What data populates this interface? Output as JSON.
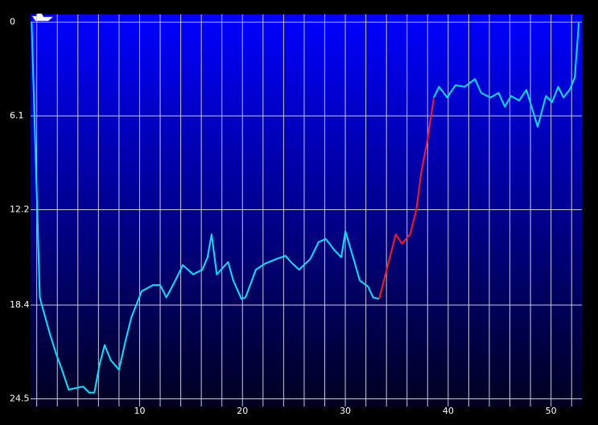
{
  "chart_data": {
    "type": "line",
    "x": [
      -0.5,
      0.3,
      0.45,
      1.2,
      1.9,
      2.4,
      3.1,
      3.8,
      4.5,
      5.1,
      5.6,
      6.1,
      6.6,
      7.2,
      8.0,
      8.6,
      9.2,
      10.2,
      11.3,
      12.0,
      12.6,
      13.4,
      14.2,
      15.2,
      16.1,
      16.6,
      17.0,
      17.5,
      18.6,
      19.1,
      19.9,
      20.3,
      21.3,
      22.2,
      23.3,
      24.2,
      24.7,
      25.5,
      26.6,
      27.4,
      28.1,
      28.9,
      29.6,
      30.0,
      30.8,
      31.4,
      32.2,
      32.7,
      33.3,
      33.9,
      34.9,
      35.5,
      36.3,
      36.9,
      37.4,
      38.0,
      38.6,
      39.1,
      39.9,
      40.7,
      41.6,
      42.6,
      43.2,
      44.1,
      44.9,
      45.5,
      46.1,
      46.9,
      47.6,
      48.7,
      49.5,
      50.1,
      50.7,
      51.2,
      51.8,
      52.3,
      52.7
    ],
    "series": [
      {
        "color": "#00e5ff",
        "values": [
          0,
          17.9,
          18.3,
          20.1,
          21.6,
          22.5,
          23.9,
          23.8,
          23.7,
          24.1,
          24.1,
          22.3,
          21.0,
          22.0,
          22.6,
          20.8,
          19.2,
          17.5,
          17.1,
          17.1,
          17.9,
          16.9,
          15.8,
          16.4,
          16.1,
          15.3,
          13.8,
          16.4,
          15.6,
          16.8,
          18.0,
          17.9,
          16.1,
          15.7,
          15.4,
          15.2,
          15.6,
          16.1,
          15.4,
          14.3,
          14.1,
          14.8,
          15.3,
          13.6,
          15.4,
          16.8,
          17.2,
          17.9,
          18.0,
          null,
          null,
          null,
          null,
          null,
          null,
          null,
          4.9,
          4.2,
          4.9,
          4.1,
          4.2,
          3.7,
          4.6,
          4.9,
          4.6,
          5.5,
          4.8,
          5.1,
          4.4,
          6.8,
          4.8,
          5.2,
          4.2,
          4.9,
          4.4,
          3.6,
          0
        ]
      },
      {
        "color": "#ff1a1a",
        "values": [
          null,
          null,
          null,
          null,
          null,
          null,
          null,
          null,
          null,
          null,
          null,
          null,
          null,
          null,
          null,
          null,
          null,
          null,
          null,
          null,
          null,
          null,
          null,
          null,
          null,
          null,
          null,
          null,
          null,
          null,
          null,
          null,
          null,
          null,
          null,
          null,
          null,
          null,
          null,
          null,
          null,
          null,
          null,
          null,
          null,
          null,
          null,
          null,
          18.0,
          16.4,
          13.8,
          14.4,
          13.8,
          12.2,
          9.7,
          7.6,
          4.9,
          null,
          null,
          null,
          null,
          null,
          null,
          null,
          null,
          null,
          null,
          null,
          null,
          null,
          null,
          null,
          null,
          null,
          null,
          null,
          null
        ]
      }
    ],
    "xlim": [
      -0.6,
      53
    ],
    "xticks": [
      10,
      20,
      30,
      40,
      50
    ],
    "xgrid": [
      0,
      2,
      4,
      6,
      8,
      10,
      12,
      14,
      16,
      18,
      20,
      22,
      24,
      26,
      28,
      30,
      32,
      34,
      36,
      38,
      40,
      42,
      44,
      46,
      48,
      50,
      52
    ],
    "ylim": [
      -0.5,
      25
    ],
    "yticks": [
      0,
      6.1,
      12.2,
      18.4,
      24.5
    ],
    "y_inverted": true,
    "grid": true
  }
}
